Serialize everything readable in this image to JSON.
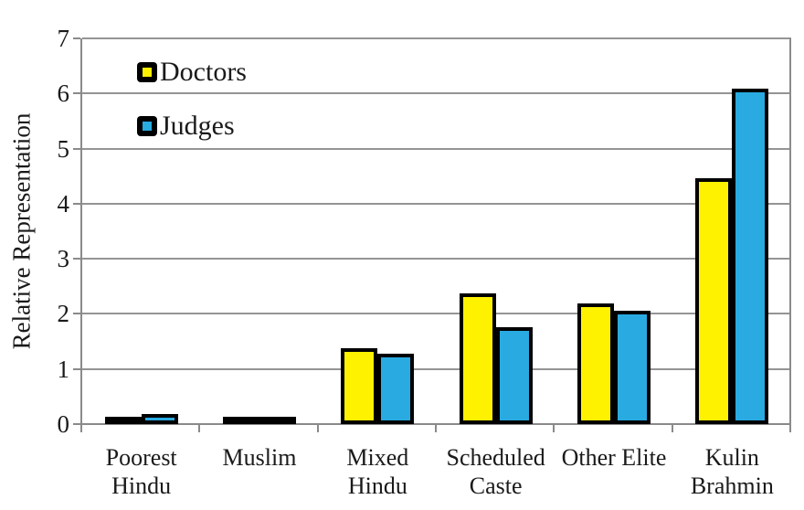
{
  "chart_data": {
    "type": "bar",
    "title": "",
    "xlabel": "",
    "ylabel": "Relative Representation",
    "ylim": [
      0,
      7
    ],
    "ytick_labels": [
      "0",
      "1",
      "2",
      "3",
      "4",
      "5",
      "6",
      "7"
    ],
    "grid": "horizontal",
    "legend_position": "top-left-inside",
    "categories": [
      "Poorest Hindu",
      "Muslim",
      "Mixed Hindu",
      "Scheduled Caste",
      "Other Elite",
      "Kulin Brahmin"
    ],
    "category_display_labels": [
      "Poorest\nHindu",
      "Muslim",
      "Mixed\nHindu",
      "Scheduled\nCaste",
      "Other Elite",
      "Kulin\nBrahmin"
    ],
    "series": [
      {
        "name": "Doctors",
        "color": "#FFF200",
        "values": [
          0.07,
          0.11,
          1.38,
          2.37,
          2.19,
          4.46
        ]
      },
      {
        "name": "Judges",
        "color": "#29ABE2",
        "values": [
          0.18,
          0.14,
          1.27,
          1.75,
          2.06,
          6.08
        ]
      }
    ],
    "bar_border_color": "#000000",
    "axis_color": "#8a8a8a",
    "gridline_color": "#949494",
    "text_color": "#1a1a1a",
    "background_color": "#ffffff"
  }
}
